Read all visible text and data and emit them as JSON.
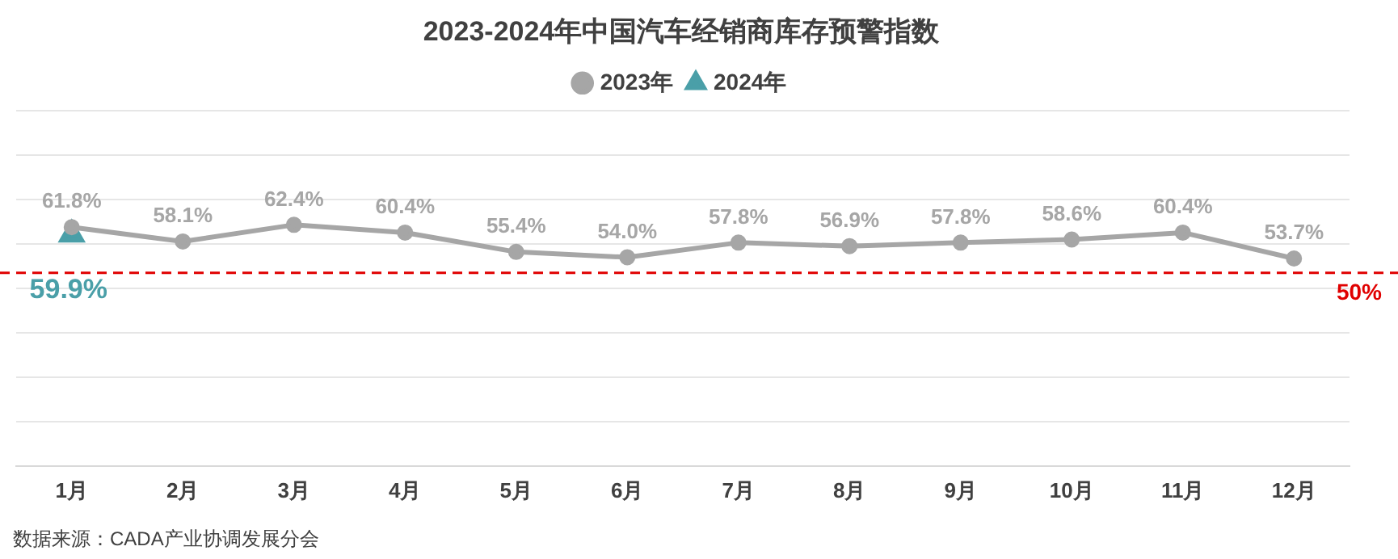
{
  "chart_data": {
    "type": "line",
    "title": "2023-2024年中国汽车经销商库存预警指数",
    "categories": [
      "1月",
      "2月",
      "3月",
      "4月",
      "5月",
      "6月",
      "7月",
      "8月",
      "9月",
      "10月",
      "11月",
      "12月"
    ],
    "series": [
      {
        "name": "2023年",
        "color": "#a6a6a6",
        "marker": "circle",
        "values": [
          61.8,
          58.1,
          62.4,
          60.4,
          55.4,
          54.0,
          57.8,
          56.9,
          57.8,
          58.6,
          60.4,
          53.7
        ],
        "value_labels": [
          "61.8%",
          "58.1%",
          "62.4%",
          "60.4%",
          "55.4%",
          "54.0%",
          "57.8%",
          "56.9%",
          "57.8%",
          "58.6%",
          "60.4%",
          "53.7%"
        ]
      },
      {
        "name": "2024年",
        "color": "#4a9fa8",
        "marker": "triangle",
        "values": [
          59.9,
          null,
          null,
          null,
          null,
          null,
          null,
          null,
          null,
          null,
          null,
          null
        ],
        "value_labels": [
          "59.9%",
          null,
          null,
          null,
          null,
          null,
          null,
          null,
          null,
          null,
          null,
          null
        ]
      }
    ],
    "ylim": [
      0,
      92
    ],
    "yticks": [
      {
        "value": 0,
        "label": null
      },
      {
        "value": 11.5,
        "label": null
      },
      {
        "value": 23,
        "label": null
      },
      {
        "value": 34.5,
        "label": null
      },
      {
        "value": 46,
        "label": null
      },
      {
        "value": 57.5,
        "label": null
      },
      {
        "value": 69,
        "label": null
      },
      {
        "value": 80.5,
        "label": null
      },
      {
        "value": 92,
        "label": null
      }
    ],
    "tick_labels": "x",
    "grid": "y",
    "legend": "top",
    "ref_lines": [
      {
        "axis": "y",
        "value": 50,
        "label": "50%",
        "color": "#e00000",
        "line_style": "dashed"
      }
    ],
    "annotations": [
      "数据来源：CADA产业协调发展分会"
    ]
  }
}
